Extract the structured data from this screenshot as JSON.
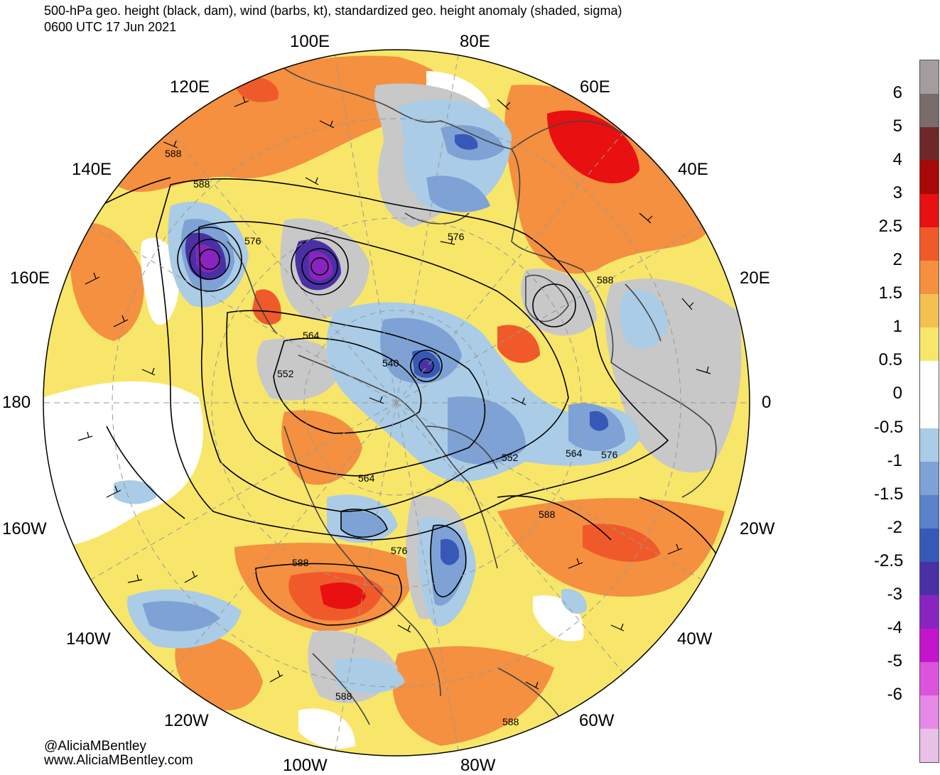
{
  "title": {
    "line1": "500-hPa geo. height (black, dam), wind (barbs, kt), standardized geo. height anomaly (shaded, sigma)",
    "line2": "0600 UTC 17 Jun 2021"
  },
  "credits": {
    "handle": "@AliciaMBentley",
    "website": "www.AliciaMBentley.com"
  },
  "longitude_labels": [
    "100E",
    "80E",
    "120E",
    "60E",
    "140E",
    "40E",
    "160E",
    "20E",
    "180",
    "0",
    "160W",
    "20W",
    "140W",
    "40W",
    "120W",
    "60W",
    "100W",
    "80W"
  ],
  "contour_labels": [
    "588",
    "588",
    "576",
    "576",
    "588",
    "564",
    "552",
    "540",
    "552",
    "564",
    "576",
    "564",
    "588",
    "576",
    "588",
    "588",
    "588"
  ],
  "colorbar": {
    "labels": [
      "6",
      "5",
      "4",
      "3",
      "2.5",
      "2",
      "1.5",
      "1",
      "0.5",
      "0",
      "-0.5",
      "-1",
      "-1.5",
      "-2",
      "-2.5",
      "-3",
      "-4",
      "-5",
      "-6"
    ],
    "colors": [
      "#a59d9d",
      "#7a6c6c",
      "#6e2828",
      "#a80808",
      "#e81010",
      "#f05a2a",
      "#f49040",
      "#f4c050",
      "#f8e66a",
      "#ffffff",
      "#ffffff",
      "#aacce6",
      "#7ea2d6",
      "#5a82cc",
      "#3858b8",
      "#4a30a4",
      "#8a24c0",
      "#c414cc",
      "#dc54dc",
      "#e888e8",
      "#e8c0e8"
    ]
  },
  "colors": {
    "land_outline": "#444444",
    "contour": "#000000",
    "grid": "#999999"
  }
}
